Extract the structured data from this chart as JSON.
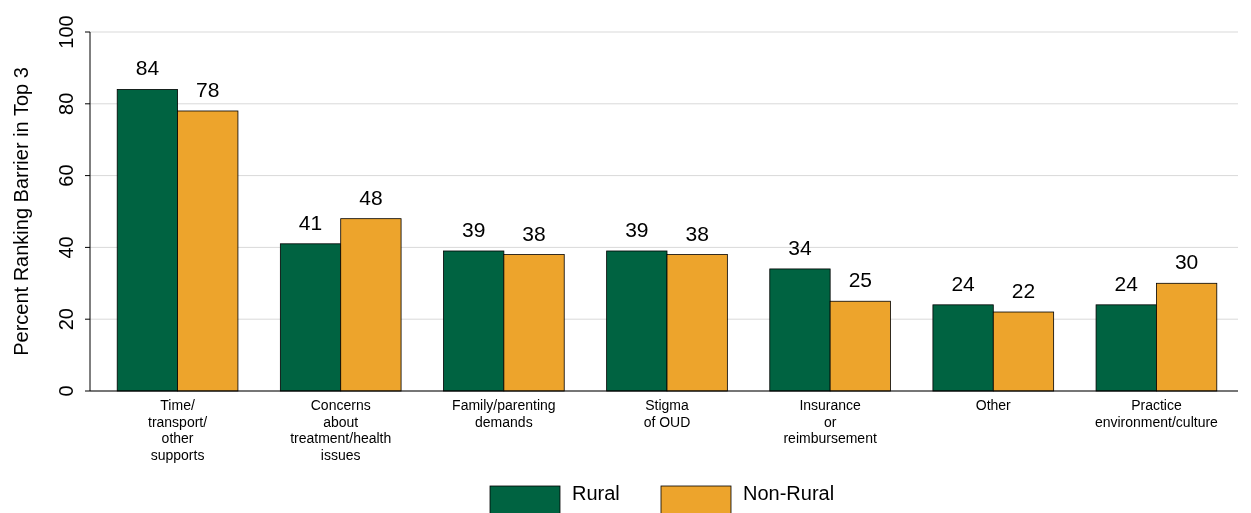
{
  "chart_data": {
    "type": "bar",
    "ylabel": "Percent Ranking Barrier in Top 3",
    "categories": [
      "Time/\ntransport/\nother\nsupports",
      "Concerns\nabout\ntreatment/health\nissues",
      "Family/parenting\ndemands",
      "Stigma\nof OUD",
      "Insurance\nor\nreimbursement",
      "Other",
      "Practice\nenvironment/culture"
    ],
    "series": [
      {
        "name": "Rural",
        "color": "#006341",
        "values": [
          84,
          41,
          39,
          39,
          34,
          24,
          24
        ]
      },
      {
        "name": "Non-Rural",
        "color": "#eda42c",
        "values": [
          78,
          48,
          38,
          38,
          25,
          22,
          30
        ]
      }
    ],
    "ylim": [
      0,
      100
    ],
    "yticks": [
      0,
      20,
      40,
      60,
      80,
      100
    ],
    "grid": "y",
    "legend": "bottom",
    "data_labels": true
  }
}
